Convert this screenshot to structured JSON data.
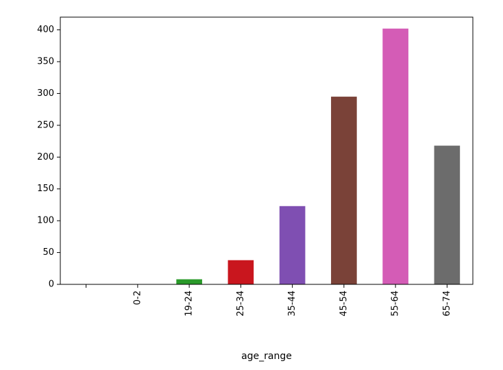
{
  "chart_data": {
    "type": "bar",
    "xlabel": "age_range",
    "ylabel": "",
    "title": "",
    "categories": [
      "",
      "0-2",
      "19-24",
      "25-34",
      "35-44",
      "45-54",
      "55-64",
      "65-74"
    ],
    "values": [
      0,
      0,
      8,
      38,
      123,
      295,
      402,
      218
    ],
    "colors": [
      "#1f77b4",
      "#ff7f0e",
      "#2ca02c",
      "#d62728",
      "#9467bd",
      "#8c564b",
      "#e377c2",
      "#7f7f7f"
    ],
    "bar_colors_rendered": [
      "#2a6fa8",
      "#d86a10",
      "#2a9a2a",
      "#c9161e",
      "#7f4fb2",
      "#7a4238",
      "#d45cb6",
      "#6c6c6c"
    ],
    "ylim": [
      0,
      420
    ],
    "yticks": [
      0,
      50,
      100,
      150,
      200,
      250,
      300,
      350,
      400
    ],
    "grid": false,
    "legend": "none"
  }
}
